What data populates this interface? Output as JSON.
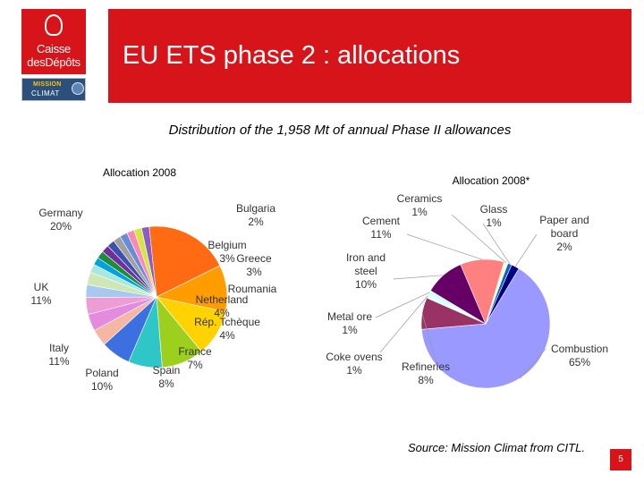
{
  "logos": {
    "caisse_line1": "Caisse",
    "caisse_line2": "desDépôts",
    "mission_line1": "MISSION",
    "mission_line2": "CLIMAT"
  },
  "slide": {
    "title": "EU ETS phase 2 : allocations",
    "subtitle": "Distribution of the 1,958 Mt of annual Phase II allowances",
    "source": "Source: Mission Climat from CITL.",
    "page_number": "5",
    "accent_color": "#d7141a"
  },
  "chart_data": [
    {
      "type": "pie",
      "title": "Allocation 2008",
      "unit": "%",
      "slices": [
        {
          "label": "Germany",
          "value_text": "20%",
          "value": 20,
          "color": "#ff6a13"
        },
        {
          "label": "UK",
          "value_text": "11%",
          "value": 11,
          "color": "#ff9d00"
        },
        {
          "label": "Italy",
          "value_text": "11%",
          "value": 11,
          "color": "#ffd200"
        },
        {
          "label": "Poland",
          "value_text": "10%",
          "value": 10,
          "color": "#9ccf1e"
        },
        {
          "label": "Spain",
          "value_text": "8%",
          "value": 8,
          "color": "#2ec6c6"
        },
        {
          "label": "France",
          "value_text": "7%",
          "value": 7,
          "color": "#3c6fe0"
        },
        {
          "label": "Rép. Tchèque",
          "value_text": "4%",
          "value": 4,
          "color": "#f5b6a2"
        },
        {
          "label": "Netherland",
          "value_text": "4%",
          "value": 4,
          "color": "#e48be0"
        },
        {
          "label": "Roumania",
          "value_text": "4%",
          "value": 4,
          "color": "#ee9cd6"
        },
        {
          "label": "Greece",
          "value_text": "3%",
          "value": 3,
          "color": "#a8c8f0"
        },
        {
          "label": "Belgium",
          "value_text": "3%",
          "value": 3,
          "color": "#cfe7b4"
        },
        {
          "label": "Bulgaria",
          "value_text": "2%",
          "value": 2,
          "color": "#a8e8e0"
        },
        {
          "label": "",
          "value_text": "",
          "value": 1.8,
          "color": "#00a2e0"
        },
        {
          "label": "",
          "value_text": "",
          "value": 1.8,
          "color": "#1e8c3c"
        },
        {
          "label": "",
          "value_text": "",
          "value": 1.8,
          "color": "#70309c"
        },
        {
          "label": "",
          "value_text": "",
          "value": 1.8,
          "color": "#3f4fb0"
        },
        {
          "label": "",
          "value_text": "",
          "value": 1.8,
          "color": "#a0a0a0"
        },
        {
          "label": "",
          "value_text": "",
          "value": 1.8,
          "color": "#6a8bd8"
        },
        {
          "label": "",
          "value_text": "",
          "value": 1.8,
          "color": "#ff88b4"
        },
        {
          "label": "",
          "value_text": "",
          "value": 1.8,
          "color": "#d4e640"
        },
        {
          "label": "",
          "value_text": "",
          "value": 1.8,
          "color": "#8a5cc8"
        }
      ]
    },
    {
      "type": "pie",
      "title": "Allocation 2008*",
      "unit": "%",
      "slices": [
        {
          "label": "Combustion",
          "value_text": "65%",
          "value": 65,
          "color": "#9999ff"
        },
        {
          "label": "Refineries",
          "value_text": "8%",
          "value": 8,
          "color": "#993366"
        },
        {
          "label": "Coke ovens",
          "value_text": "1%",
          "value": 1,
          "color": "#e0ffff"
        },
        {
          "label": "Metal ore",
          "value_text": "1%",
          "value": 1,
          "color": "#ccffff"
        },
        {
          "label": "Iron and steel",
          "value_text": "10%",
          "value": 10,
          "color": "#660066"
        },
        {
          "label": "Cement",
          "value_text": "11%",
          "value": 11,
          "color": "#ff8080"
        },
        {
          "label": "Ceramics",
          "value_text": "1%",
          "value": 1,
          "color": "#ffffcc"
        },
        {
          "label": "Glass",
          "value_text": "1%",
          "value": 1,
          "color": "#0066cc"
        },
        {
          "label": "Paper and board",
          "value_text": "2%",
          "value": 2,
          "color": "#000080"
        }
      ]
    }
  ]
}
